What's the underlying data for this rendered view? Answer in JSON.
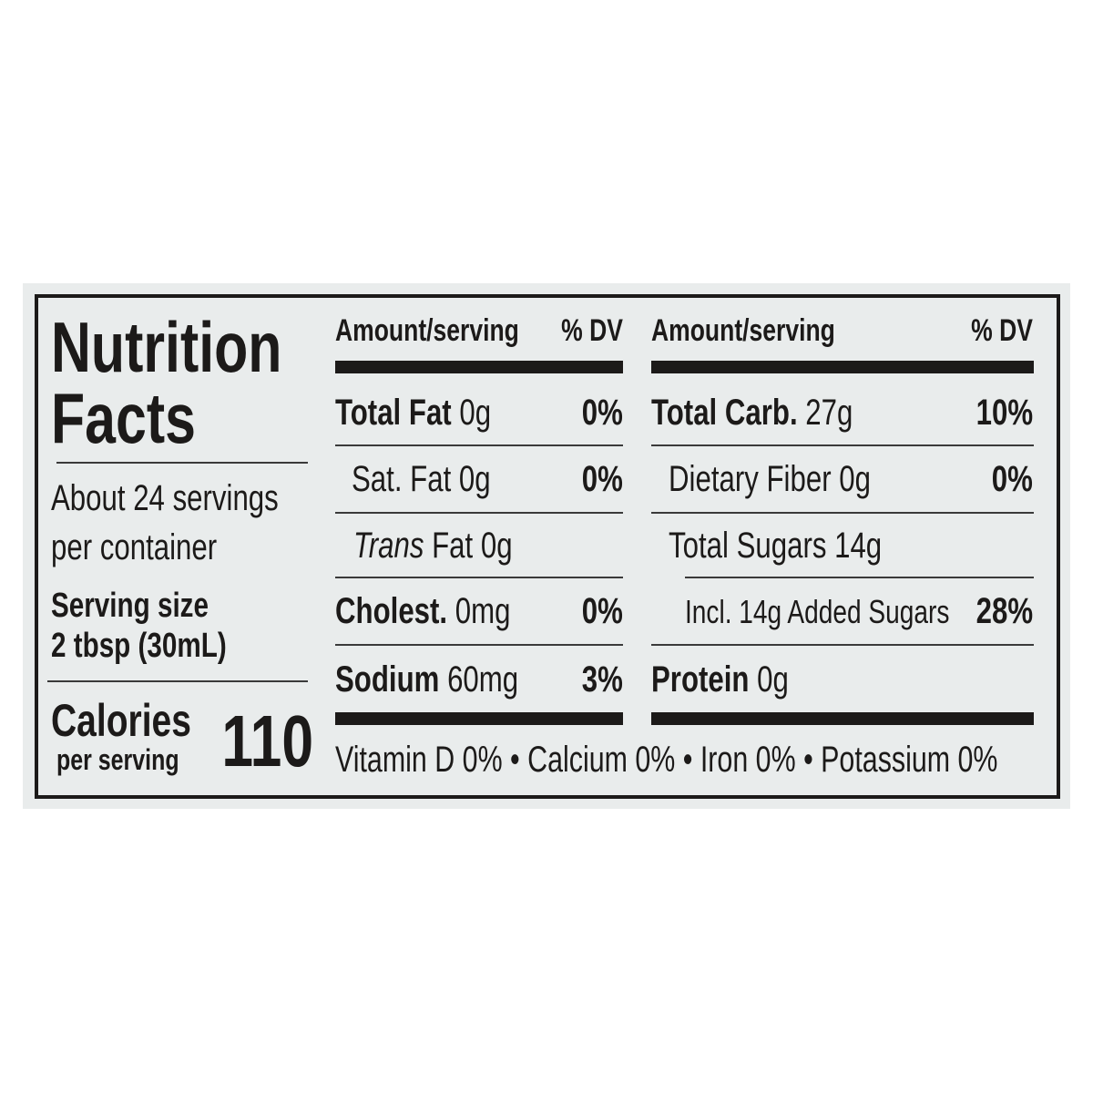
{
  "title_line1": "Nutrition",
  "title_line2": "Facts",
  "servings_line1": "About 24 servings",
  "servings_line2": "per container",
  "serving_size_label": "Serving size",
  "serving_size_value": "2 tbsp (30mL)",
  "calories_label": "Calories",
  "calories_sub": "per serving",
  "calories_value": "110",
  "headers": {
    "amount": "Amount/serving",
    "dv": "% DV"
  },
  "left_nutrients": [
    {
      "name": "Total Fat",
      "amount": "0g",
      "dv": "0%"
    },
    {
      "name": "Sat. Fat",
      "amount": "0g",
      "dv": "0%"
    },
    {
      "name": "Trans",
      "amount": "Fat 0g",
      "dv": ""
    },
    {
      "name": "Cholest.",
      "amount": "0mg",
      "dv": "0%"
    },
    {
      "name": "Sodium",
      "amount": "60mg",
      "dv": "3%"
    }
  ],
  "right_nutrients": [
    {
      "name": "Total Carb.",
      "amount": "27g",
      "dv": "10%"
    },
    {
      "name": "Dietary Fiber",
      "amount": "0g",
      "dv": "0%"
    },
    {
      "name": "Total Sugars",
      "amount": "14g",
      "dv": ""
    },
    {
      "name": "Incl. 14g Added Sugars",
      "amount": "",
      "dv": "28%"
    },
    {
      "name": "Protein",
      "amount": "0g",
      "dv": ""
    }
  ],
  "vitamins": "Vitamin D 0% • Calcium 0% • Iron 0% • Potassium 0%",
  "colors": {
    "panel": "#e9ecec",
    "ink": "#1c1a19"
  }
}
